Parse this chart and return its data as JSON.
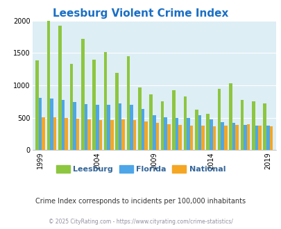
{
  "title": "Leesburg Violent Crime Index",
  "title_color": "#1a6fc4",
  "subtitle": "Crime Index corresponds to incidents per 100,000 inhabitants",
  "footer": "© 2025 CityRating.com - https://www.cityrating.com/crime-statistics/",
  "years": [
    1999,
    2000,
    2001,
    2002,
    2003,
    2004,
    2005,
    2006,
    2007,
    2008,
    2009,
    2010,
    2011,
    2012,
    2013,
    2014,
    2015,
    2016,
    2017,
    2018,
    2019,
    2020
  ],
  "leesburg": [
    1380,
    2000,
    1920,
    1330,
    1720,
    1400,
    1510,
    1190,
    1450,
    970,
    860,
    750,
    920,
    830,
    620,
    560,
    950,
    1030,
    770,
    750,
    720,
    null
  ],
  "florida": [
    810,
    800,
    775,
    740,
    710,
    700,
    700,
    720,
    700,
    630,
    540,
    510,
    490,
    495,
    540,
    470,
    430,
    420,
    390,
    380,
    375,
    null
  ],
  "national": [
    505,
    505,
    500,
    480,
    470,
    465,
    465,
    470,
    460,
    440,
    415,
    395,
    385,
    380,
    375,
    365,
    375,
    390,
    395,
    375,
    365,
    null
  ],
  "leesburg_color": "#8dc63f",
  "florida_color": "#4da6e8",
  "national_color": "#f5a623",
  "bg_color": "#ddeef5",
  "ylim": [
    0,
    2000
  ],
  "yticks": [
    0,
    500,
    1000,
    1500,
    2000
  ],
  "bar_width": 0.28,
  "tick_years": [
    1999,
    2004,
    2009,
    2014,
    2019
  ],
  "legend_labels": [
    "Leesburg",
    "Florida",
    "National"
  ],
  "subtitle_color": "#333333",
  "footer_color": "#9090a0",
  "grid_color": "#ffffff"
}
